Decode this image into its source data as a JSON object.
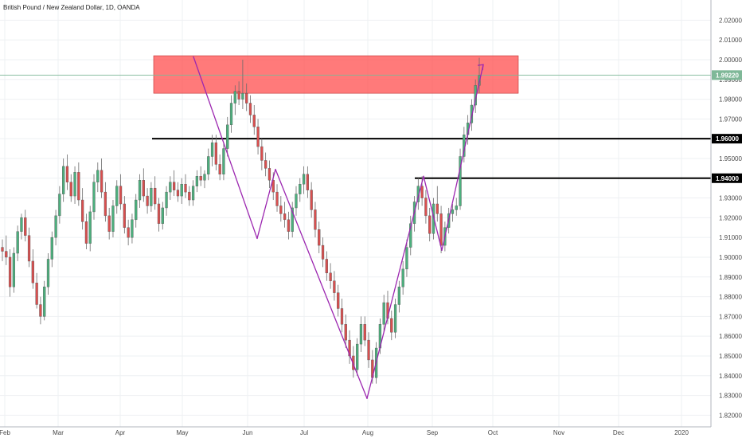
{
  "chart_data": {
    "type": "candlestick",
    "title": "British Pound / New Zealand Dollar, 1D, OANDA",
    "x_tick_labels": [
      "Feb",
      "Mar",
      "Apr",
      "May",
      "Jun",
      "Jul",
      "Aug",
      "Sep",
      "Oct",
      "Nov",
      "Dec",
      "2020"
    ],
    "y_tick_labels": [
      "1.82000",
      "1.83000",
      "1.84000",
      "1.85000",
      "1.86000",
      "1.87000",
      "1.88000",
      "1.89000",
      "1.90000",
      "1.91000",
      "1.92000",
      "1.93000",
      "1.94000",
      "1.95000",
      "1.96000",
      "1.97000",
      "1.98000",
      "1.99000",
      "2.00000",
      "2.01000",
      "2.02000"
    ],
    "ylim": [
      1.8151,
      2.0266
    ],
    "grid": true,
    "current_price": {
      "label": "1.99220",
      "value": 1.9922,
      "color": "#7fb898"
    },
    "horizontal_levels": [
      {
        "label": "1.96000",
        "value": 1.96,
        "start_month": "Apr"
      },
      {
        "label": "1.94000",
        "value": 1.94,
        "start_month": "Aug"
      }
    ],
    "resistance_zone": {
      "low": 1.983,
      "high": 2.002,
      "start_month": "Apr",
      "end_month": "Oct",
      "color": "#ff4d4d"
    },
    "trend_lines": [
      {
        "from": [
          "May",
          2.0015
        ],
        "to": [
          "Jun",
          1.9095
        ]
      },
      {
        "from": [
          "Jun",
          1.9095
        ],
        "to": [
          "Jun",
          1.9445
        ]
      },
      {
        "from": [
          "Jun",
          1.9445
        ],
        "to": [
          "Aug",
          1.8285
        ]
      },
      {
        "from": [
          "Aug",
          1.8285
        ],
        "to": [
          "Aug",
          1.941
        ]
      },
      {
        "from": [
          "Aug",
          1.941
        ],
        "to": [
          "Sep",
          1.9035
        ]
      },
      {
        "from": [
          "Sep",
          1.9035
        ],
        "to": [
          "Sep",
          1.9975
        ]
      }
    ],
    "up_color": "#4caf7d",
    "down_color": "#d94f4f",
    "line_color": "#9c27b0",
    "candles": [
      [
        1.905,
        1.909,
        1.898,
        1.903
      ],
      [
        1.903,
        1.911,
        1.896,
        1.9
      ],
      [
        1.9,
        1.904,
        1.88,
        1.885
      ],
      [
        1.885,
        1.905,
        1.882,
        1.902
      ],
      [
        1.902,
        1.916,
        1.898,
        1.913
      ],
      [
        1.913,
        1.922,
        1.909,
        1.92
      ],
      [
        1.92,
        1.924,
        1.908,
        1.911
      ],
      [
        1.911,
        1.915,
        1.895,
        1.898
      ],
      [
        1.898,
        1.904,
        1.884,
        1.887
      ],
      [
        1.887,
        1.892,
        1.874,
        1.876
      ],
      [
        1.876,
        1.88,
        1.866,
        1.87
      ],
      [
        1.87,
        1.888,
        1.868,
        1.885
      ],
      [
        1.885,
        1.902,
        1.881,
        1.899
      ],
      [
        1.899,
        1.913,
        1.895,
        1.91
      ],
      [
        1.91,
        1.924,
        1.906,
        1.921
      ],
      [
        1.921,
        1.936,
        1.917,
        1.932
      ],
      [
        1.932,
        1.95,
        1.928,
        1.946
      ],
      [
        1.946,
        1.952,
        1.934,
        1.938
      ],
      [
        1.938,
        1.942,
        1.928,
        1.931
      ],
      [
        1.931,
        1.946,
        1.927,
        1.943
      ],
      [
        1.943,
        1.948,
        1.926,
        1.929
      ],
      [
        1.929,
        1.935,
        1.914,
        1.918
      ],
      [
        1.918,
        1.922,
        1.904,
        1.907
      ],
      [
        1.907,
        1.926,
        1.903,
        1.923
      ],
      [
        1.923,
        1.942,
        1.919,
        1.938
      ],
      [
        1.938,
        1.948,
        1.933,
        1.944
      ],
      [
        1.944,
        1.95,
        1.93,
        1.933
      ],
      [
        1.933,
        1.938,
        1.918,
        1.921
      ],
      [
        1.921,
        1.925,
        1.909,
        1.913
      ],
      [
        1.913,
        1.929,
        1.91,
        1.926
      ],
      [
        1.926,
        1.939,
        1.922,
        1.936
      ],
      [
        1.936,
        1.942,
        1.924,
        1.927
      ],
      [
        1.927,
        1.931,
        1.912,
        1.915
      ],
      [
        1.915,
        1.919,
        1.906,
        1.91
      ],
      [
        1.91,
        1.922,
        1.907,
        1.919
      ],
      [
        1.919,
        1.932,
        1.915,
        1.929
      ],
      [
        1.929,
        1.942,
        1.925,
        1.939
      ],
      [
        1.939,
        1.945,
        1.928,
        1.931
      ],
      [
        1.931,
        1.935,
        1.922,
        1.926
      ],
      [
        1.926,
        1.938,
        1.923,
        1.935
      ],
      [
        1.935,
        1.941,
        1.924,
        1.927
      ],
      [
        1.927,
        1.93,
        1.913,
        1.917
      ],
      [
        1.917,
        1.928,
        1.914,
        1.925
      ],
      [
        1.925,
        1.936,
        1.921,
        1.933
      ],
      [
        1.933,
        1.941,
        1.929,
        1.938
      ],
      [
        1.938,
        1.944,
        1.931,
        1.934
      ],
      [
        1.934,
        1.938,
        1.928,
        1.931
      ],
      [
        1.931,
        1.94,
        1.927,
        1.937
      ],
      [
        1.937,
        1.942,
        1.93,
        1.933
      ],
      [
        1.933,
        1.936,
        1.926,
        1.929
      ],
      [
        1.929,
        1.939,
        1.926,
        1.936
      ],
      [
        1.936,
        1.944,
        1.933,
        1.941
      ],
      [
        1.941,
        1.946,
        1.936,
        1.939
      ],
      [
        1.939,
        1.944,
        1.935,
        1.942
      ],
      [
        1.942,
        1.955,
        1.939,
        1.951
      ],
      [
        1.951,
        1.962,
        1.946,
        1.958
      ],
      [
        1.958,
        1.962,
        1.944,
        1.947
      ],
      [
        1.947,
        1.952,
        1.939,
        1.942
      ],
      [
        1.942,
        1.958,
        1.939,
        1.955
      ],
      [
        1.955,
        1.971,
        1.951,
        1.967
      ],
      [
        1.967,
        1.982,
        1.963,
        1.978
      ],
      [
        1.978,
        1.987,
        1.972,
        1.984
      ],
      [
        1.984,
        1.989,
        1.977,
        1.98
      ],
      [
        1.98,
        2.0,
        1.975,
        1.983
      ],
      [
        1.983,
        1.988,
        1.974,
        1.978
      ],
      [
        1.978,
        1.982,
        1.968,
        1.972
      ],
      [
        1.972,
        1.977,
        1.962,
        1.966
      ],
      [
        1.966,
        1.97,
        1.952,
        1.956
      ],
      [
        1.956,
        1.96,
        1.944,
        1.949
      ],
      [
        1.949,
        1.953,
        1.941,
        1.945
      ],
      [
        1.945,
        1.949,
        1.935,
        1.939
      ],
      [
        1.939,
        1.943,
        1.929,
        1.933
      ],
      [
        1.933,
        1.937,
        1.923,
        1.926
      ],
      [
        1.926,
        1.931,
        1.918,
        1.922
      ],
      [
        1.922,
        1.928,
        1.915,
        1.919
      ],
      [
        1.919,
        1.923,
        1.909,
        1.913
      ],
      [
        1.913,
        1.928,
        1.91,
        1.925
      ],
      [
        1.925,
        1.936,
        1.921,
        1.932
      ],
      [
        1.932,
        1.94,
        1.928,
        1.937
      ],
      [
        1.937,
        1.946,
        1.932,
        1.942
      ],
      [
        1.942,
        1.946,
        1.93,
        1.934
      ],
      [
        1.934,
        1.938,
        1.92,
        1.924
      ],
      [
        1.924,
        1.928,
        1.91,
        1.914
      ],
      [
        1.914,
        1.918,
        1.902,
        1.906
      ],
      [
        1.906,
        1.91,
        1.895,
        1.899
      ],
      [
        1.899,
        1.903,
        1.888,
        1.892
      ],
      [
        1.892,
        1.897,
        1.884,
        1.888
      ],
      [
        1.888,
        1.893,
        1.878,
        1.882
      ],
      [
        1.882,
        1.886,
        1.87,
        1.874
      ],
      [
        1.874,
        1.879,
        1.862,
        1.866
      ],
      [
        1.866,
        1.871,
        1.854,
        1.858
      ],
      [
        1.858,
        1.863,
        1.846,
        1.85
      ],
      [
        1.85,
        1.855,
        1.839,
        1.843
      ],
      [
        1.843,
        1.859,
        1.84,
        1.856
      ],
      [
        1.856,
        1.87,
        1.852,
        1.866
      ],
      [
        1.866,
        1.87,
        1.855,
        1.858
      ],
      [
        1.858,
        1.862,
        1.844,
        1.848
      ],
      [
        1.848,
        1.853,
        1.836,
        1.839
      ],
      [
        1.839,
        1.857,
        1.836,
        1.854
      ],
      [
        1.854,
        1.869,
        1.851,
        1.866
      ],
      [
        1.866,
        1.881,
        1.862,
        1.877
      ],
      [
        1.877,
        1.883,
        1.866,
        1.869
      ],
      [
        1.869,
        1.873,
        1.858,
        1.862
      ],
      [
        1.862,
        1.879,
        1.859,
        1.876
      ],
      [
        1.876,
        1.888,
        1.872,
        1.885
      ],
      [
        1.885,
        1.898,
        1.881,
        1.894
      ],
      [
        1.894,
        1.909,
        1.89,
        1.905
      ],
      [
        1.905,
        1.921,
        1.901,
        1.917
      ],
      [
        1.917,
        1.931,
        1.913,
        1.928
      ],
      [
        1.928,
        1.94,
        1.924,
        1.936
      ],
      [
        1.936,
        1.941,
        1.926,
        1.93
      ],
      [
        1.93,
        1.934,
        1.917,
        1.921
      ],
      [
        1.921,
        1.925,
        1.908,
        1.912
      ],
      [
        1.912,
        1.93,
        1.909,
        1.927
      ],
      [
        1.927,
        1.936,
        1.918,
        1.922
      ],
      [
        1.922,
        1.926,
        1.902,
        1.906
      ],
      [
        1.906,
        1.918,
        1.903,
        1.915
      ],
      [
        1.915,
        1.925,
        1.912,
        1.922
      ],
      [
        1.922,
        1.927,
        1.918,
        1.924
      ],
      [
        1.924,
        1.93,
        1.921,
        1.926
      ],
      [
        1.926,
        1.955,
        1.924,
        1.951
      ],
      [
        1.951,
        1.966,
        1.948,
        1.962
      ],
      [
        1.962,
        1.972,
        1.957,
        1.968
      ],
      [
        1.968,
        1.98,
        1.964,
        1.977
      ],
      [
        1.977,
        1.99,
        1.973,
        1.987
      ],
      [
        1.987,
        2.001,
        1.983,
        1.992
      ]
    ]
  }
}
